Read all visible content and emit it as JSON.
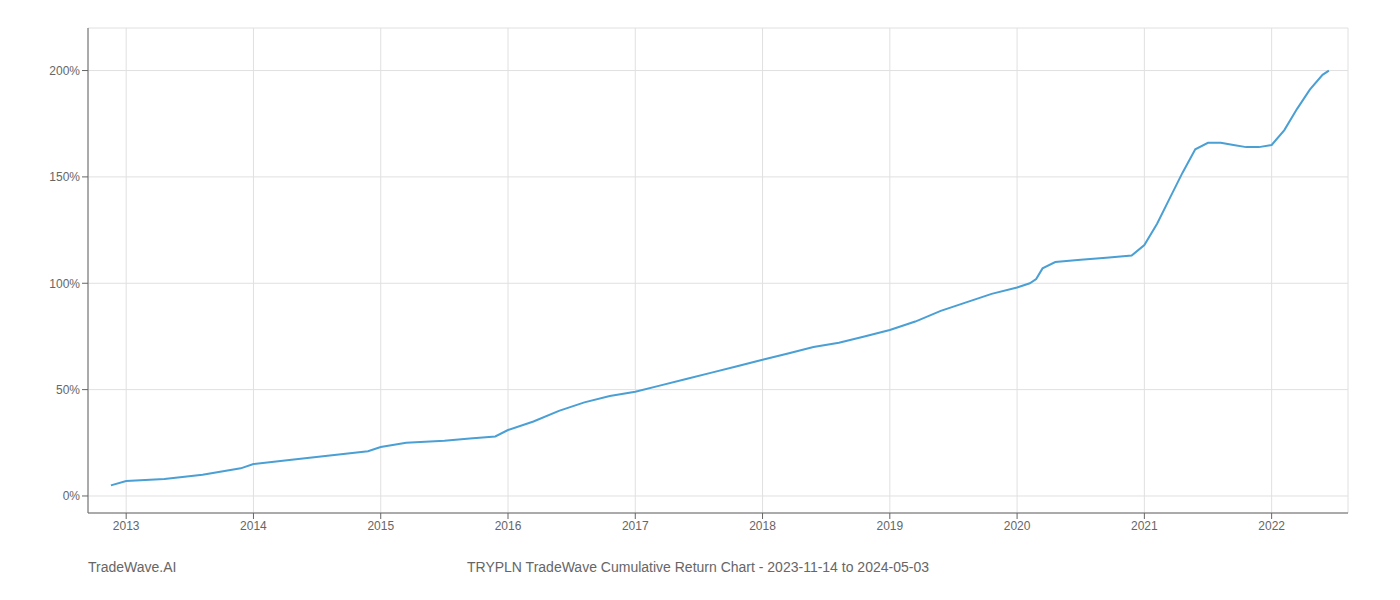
{
  "chart_data": {
    "type": "line",
    "title": "TRYPLN TradeWave Cumulative Return Chart - 2023-11-14 to 2024-05-03",
    "annotations": [
      "TradeWave.AI"
    ],
    "x": [
      2012.88,
      2013.0,
      2013.3,
      2013.6,
      2013.9,
      2014.0,
      2014.3,
      2014.6,
      2014.9,
      2015.0,
      2015.2,
      2015.5,
      2015.7,
      2015.9,
      2016.0,
      2016.2,
      2016.4,
      2016.6,
      2016.8,
      2017.0,
      2017.2,
      2017.4,
      2017.6,
      2017.8,
      2018.0,
      2018.2,
      2018.4,
      2018.6,
      2018.8,
      2019.0,
      2019.2,
      2019.4,
      2019.6,
      2019.8,
      2020.0,
      2020.1,
      2020.15,
      2020.2,
      2020.3,
      2020.5,
      2020.7,
      2020.9,
      2021.0,
      2021.1,
      2021.2,
      2021.3,
      2021.4,
      2021.5,
      2021.6,
      2021.7,
      2021.8,
      2021.9,
      2022.0,
      2022.1,
      2022.2,
      2022.3,
      2022.4,
      2022.45
    ],
    "values": [
      5,
      7,
      8,
      10,
      13,
      15,
      17,
      19,
      21,
      23,
      25,
      26,
      27,
      28,
      31,
      35,
      40,
      44,
      47,
      49,
      52,
      55,
      58,
      61,
      64,
      67,
      70,
      72,
      75,
      78,
      82,
      87,
      91,
      95,
      98,
      100,
      102,
      107,
      110,
      111,
      112,
      113,
      118,
      128,
      140,
      152,
      163,
      166,
      166,
      165,
      164,
      164,
      165,
      172,
      182,
      191,
      198,
      200
    ],
    "color": "#4a9fd4",
    "xlim": [
      2012.7,
      2022.6
    ],
    "xticks": [
      2013,
      2014,
      2015,
      2016,
      2017,
      2018,
      2019,
      2020,
      2021,
      2022
    ],
    "ylim": [
      -8,
      220
    ],
    "yticks": [
      {
        "value": 0,
        "label": "0%"
      },
      {
        "value": 50,
        "label": "50%"
      },
      {
        "value": 100,
        "label": "100%"
      },
      {
        "value": 150,
        "label": "150%"
      },
      {
        "value": 200,
        "label": "200%"
      }
    ],
    "grid": true
  }
}
